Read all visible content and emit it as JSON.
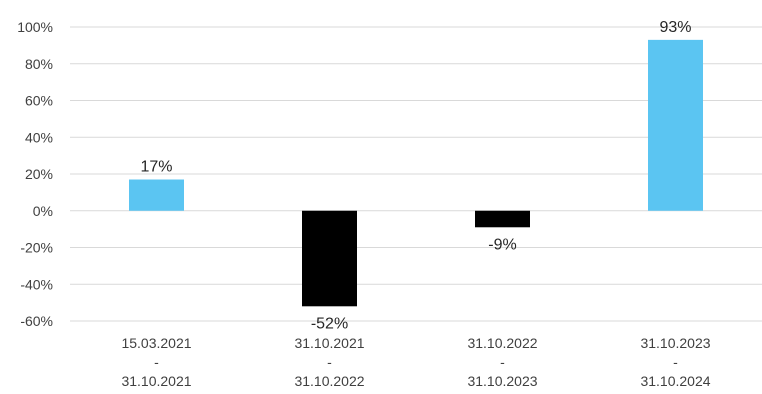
{
  "chart_data": {
    "type": "bar",
    "categories": [
      [
        "15.03.2021",
        "-",
        "31.10.2021"
      ],
      [
        "31.10.2021",
        "-",
        "31.10.2022"
      ],
      [
        "31.10.2022",
        "-",
        "31.10.2023"
      ],
      [
        "31.10.2023",
        "-",
        "31.10.2024"
      ]
    ],
    "values": [
      17,
      -52,
      -9,
      93
    ],
    "data_labels": [
      "17%",
      "-52%",
      "-9%",
      "93%"
    ],
    "ylim": [
      -60,
      100
    ],
    "yticks": [
      100,
      80,
      60,
      40,
      20,
      0,
      -20,
      -40,
      -60
    ],
    "ytick_labels": [
      "100%",
      "80%",
      "60%",
      "40%",
      "20%",
      "0%",
      "-20%",
      "-40%",
      "-60%"
    ],
    "grid": true,
    "legend": "none",
    "colors": {
      "positive": "#5bc5f2",
      "negative": "#000000",
      "grid": "#d9d9d9",
      "text": "#404040"
    }
  }
}
